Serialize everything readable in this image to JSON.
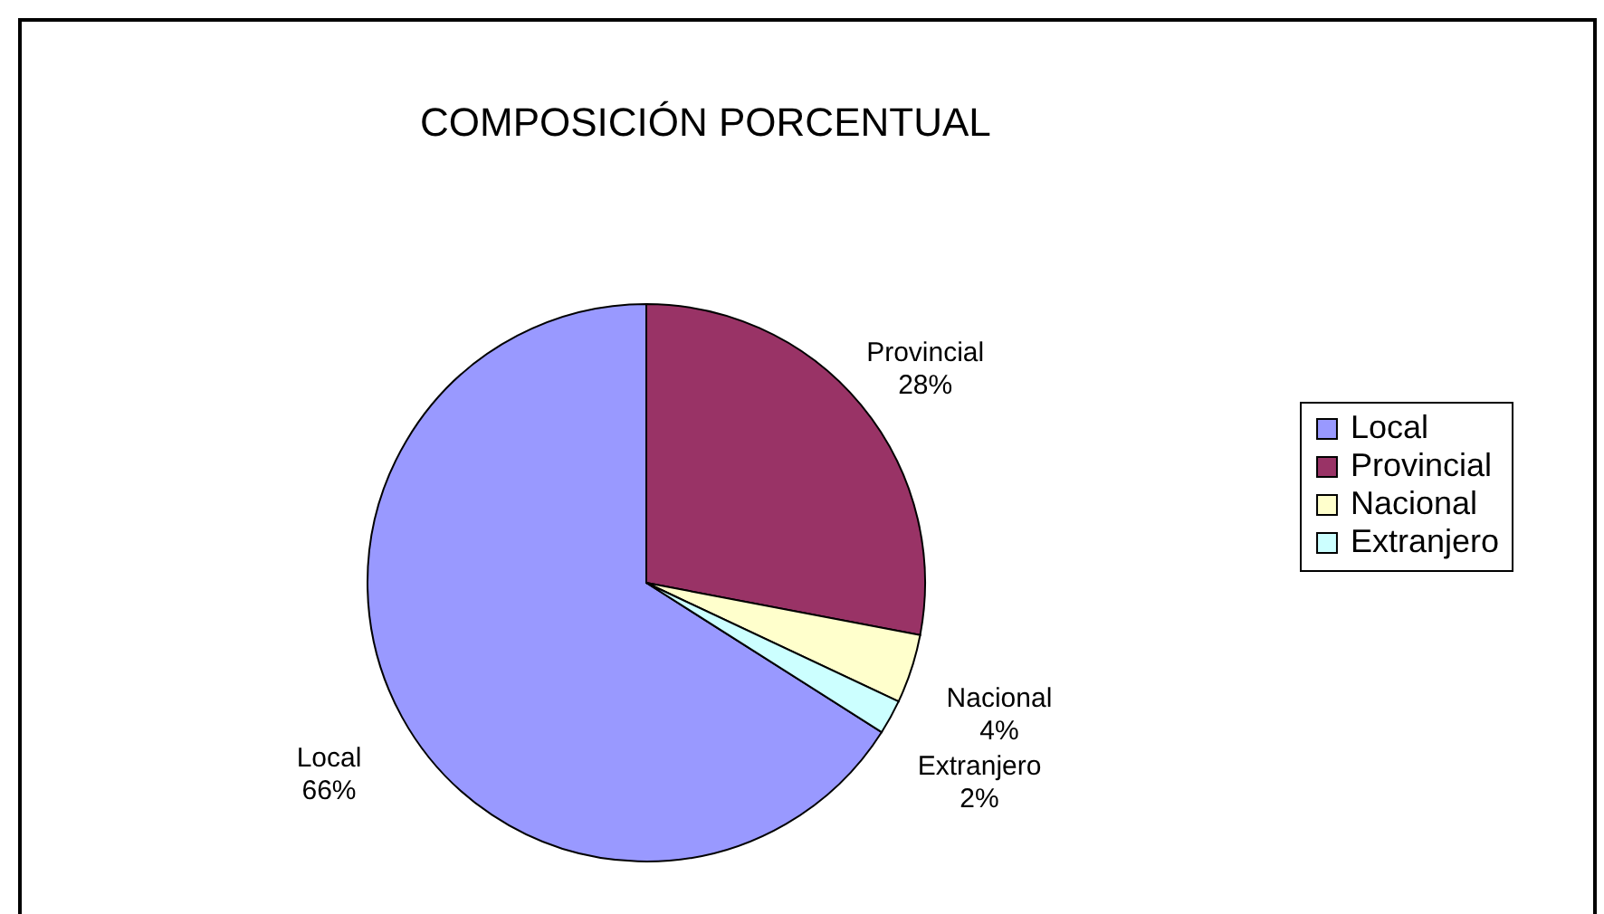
{
  "chart_data": {
    "type": "pie",
    "title": "COMPOSICIÓN PORCENTUAL",
    "categories": [
      "Local",
      "Provincial",
      "Nacional",
      "Extranjero"
    ],
    "values": [
      66,
      28,
      4,
      2
    ],
    "value_labels": [
      "66%",
      "28%",
      "4%",
      "2%"
    ],
    "colors": [
      "#9999ff",
      "#993366",
      "#ffffcc",
      "#ccffff"
    ],
    "legend": "right"
  }
}
